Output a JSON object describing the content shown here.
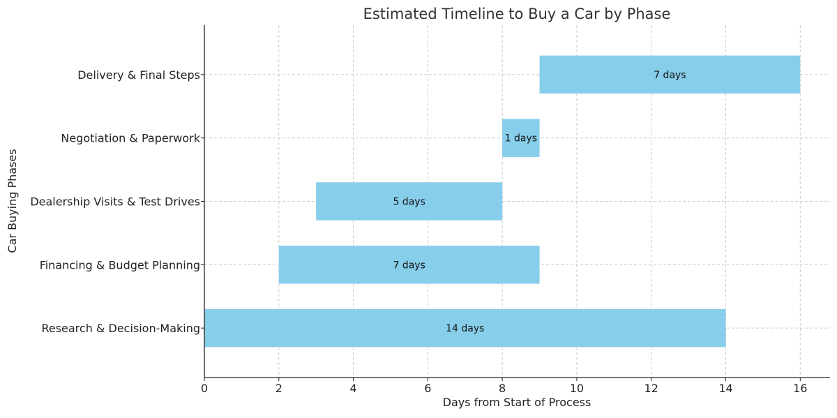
{
  "chart_data": {
    "type": "bar",
    "orientation": "horizontal",
    "title": "Estimated Timeline to Buy a Car by Phase",
    "xlabel": "Days from Start of Process",
    "ylabel": "Car Buying Phases",
    "xlim": [
      0,
      16.8
    ],
    "x_ticks": [
      0,
      2,
      4,
      6,
      8,
      10,
      12,
      14,
      16
    ],
    "grid": true,
    "bar_color": "#87CEEB",
    "categories": [
      "Research & Decision-Making",
      "Financing & Budget Planning",
      "Dealership Visits & Test Drives",
      "Negotiation & Paperwork",
      "Delivery & Final Steps"
    ],
    "bars": [
      {
        "start": 0,
        "duration": 14,
        "label": "14 days"
      },
      {
        "start": 2,
        "duration": 7,
        "label": "7 days"
      },
      {
        "start": 3,
        "duration": 5,
        "label": "5 days"
      },
      {
        "start": 8,
        "duration": 1,
        "label": "1 days"
      },
      {
        "start": 9,
        "duration": 7,
        "label": "7 days"
      }
    ]
  }
}
